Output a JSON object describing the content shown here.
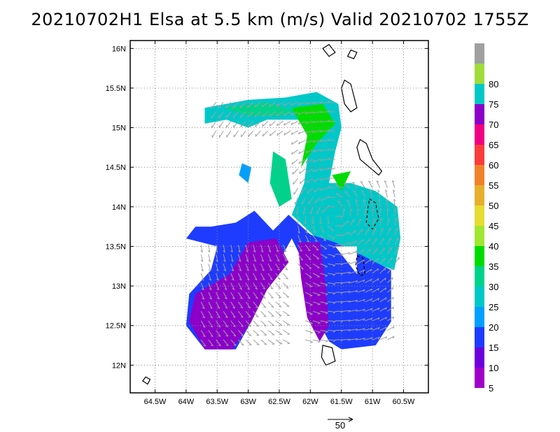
{
  "title": "20210702H1 Elsa at 5.5 km (m/s) Valid 20210702  1755Z",
  "map": {
    "lon_range": [
      -64.9,
      -60.1
    ],
    "lat_range": [
      11.65,
      16.1
    ],
    "x_ticks": [
      {
        "lon": -64.5,
        "label": "64.5W"
      },
      {
        "lon": -64.0,
        "label": "64W"
      },
      {
        "lon": -63.5,
        "label": "63.5W"
      },
      {
        "lon": -63.0,
        "label": "63W"
      },
      {
        "lon": -62.5,
        "label": "62.5W"
      },
      {
        "lon": -62.0,
        "label": "62W"
      },
      {
        "lon": -61.5,
        "label": "61.5W"
      },
      {
        "lon": -61.0,
        "label": "61W"
      },
      {
        "lon": -60.5,
        "label": "60.5W"
      }
    ],
    "y_ticks": [
      {
        "lat": 16.0,
        "label": "16N"
      },
      {
        "lat": 15.5,
        "label": "15.5N"
      },
      {
        "lat": 15.0,
        "label": "15N"
      },
      {
        "lat": 14.5,
        "label": "14.5N"
      },
      {
        "lat": 14.0,
        "label": "14N"
      },
      {
        "lat": 13.5,
        "label": "13.5N"
      },
      {
        "lat": 13.0,
        "label": "13N"
      },
      {
        "lat": 12.5,
        "label": "12.5N"
      },
      {
        "lat": 12.0,
        "label": "12N"
      }
    ],
    "gridlines": true
  },
  "colorbar": {
    "levels": [
      {
        "label": "",
        "color": "#a0a0a0"
      },
      {
        "label": "80",
        "color": "#a0dc3c"
      },
      {
        "label": "75",
        "color": "#00c8c8"
      },
      {
        "label": "70",
        "color": "#8c00c8"
      },
      {
        "label": "65",
        "color": "#f00082"
      },
      {
        "label": "60",
        "color": "#fa3c3c"
      },
      {
        "label": "55",
        "color": "#f0822a"
      },
      {
        "label": "50",
        "color": "#e6af2d"
      },
      {
        "label": "45",
        "color": "#e6dc32"
      },
      {
        "label": "40",
        "color": "#a0e632"
      },
      {
        "label": "35",
        "color": "#00dc00"
      },
      {
        "label": "30",
        "color": "#00d28c"
      },
      {
        "label": "25",
        "color": "#00c8c8"
      },
      {
        "label": "20",
        "color": "#00a0ff"
      },
      {
        "label": "15",
        "color": "#1e3cff"
      },
      {
        "label": "10",
        "color": "#6e00dc"
      },
      {
        "label": "5",
        "color": "#a000c8"
      }
    ]
  },
  "reference_vector": {
    "label": "50"
  },
  "wind_field": {
    "description_colors": {
      "purple": "#8c00c8",
      "blue": "#1e3cff",
      "cyan": "#00c8c8",
      "green": "#00d28c",
      "bright_green": "#00dc00",
      "light_blue": "#00a0ff"
    },
    "vector_color": "#a0a0a0"
  }
}
